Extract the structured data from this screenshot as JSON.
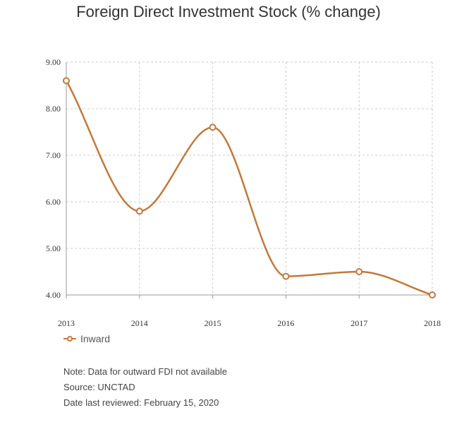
{
  "chart_data": {
    "type": "line",
    "title": "Foreign Direct Investment Stock (% change)",
    "x": [
      "2013",
      "2014",
      "2015",
      "2016",
      "2017",
      "2018"
    ],
    "series": [
      {
        "name": "Inward",
        "values": [
          8.6,
          5.8,
          7.6,
          4.4,
          4.5,
          4.0
        ]
      }
    ],
    "yticks": [
      "4.00",
      "5.00",
      "6.00",
      "7.00",
      "8.00",
      "9.00"
    ],
    "ylim": [
      4,
      9
    ],
    "grid": true,
    "legend_position": "bottom-left",
    "line_color": "#c07a3a"
  },
  "notes": {
    "note": "Note: Data for outward FDI not available",
    "source": "Source: UNCTAD",
    "reviewed": "Date last reviewed: February 15, 2020"
  }
}
